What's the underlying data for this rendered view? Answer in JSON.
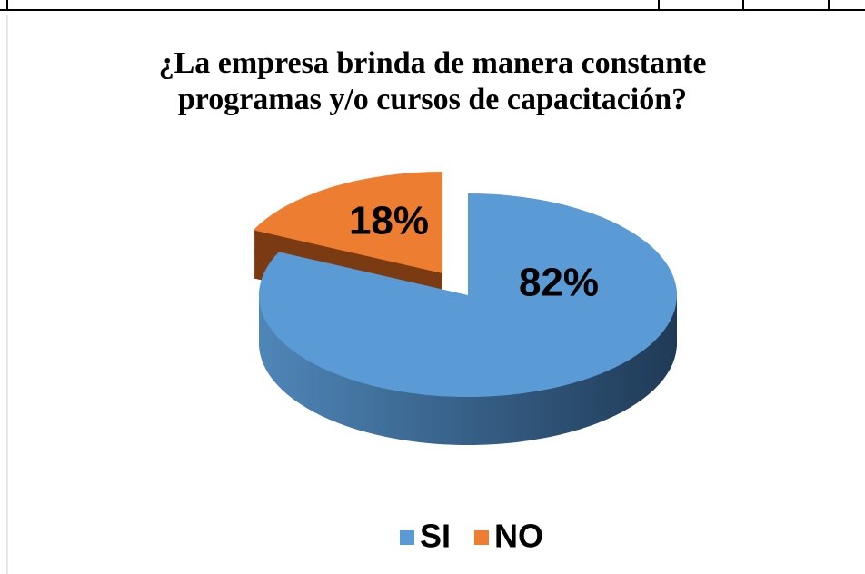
{
  "chart_data": {
    "type": "pie",
    "title": "¿La empresa brinda de manera constante programas y/o cursos de capacitación?",
    "title_lines": [
      "¿La empresa brinda de manera constante",
      "programas y/o cursos de capacitación?"
    ],
    "categories": [
      "SI",
      "NO"
    ],
    "values": [
      82,
      18
    ],
    "value_labels": [
      "82%",
      "18%"
    ],
    "colors": [
      "#5b9bd5",
      "#ed7d31"
    ],
    "legend": "bottom"
  }
}
